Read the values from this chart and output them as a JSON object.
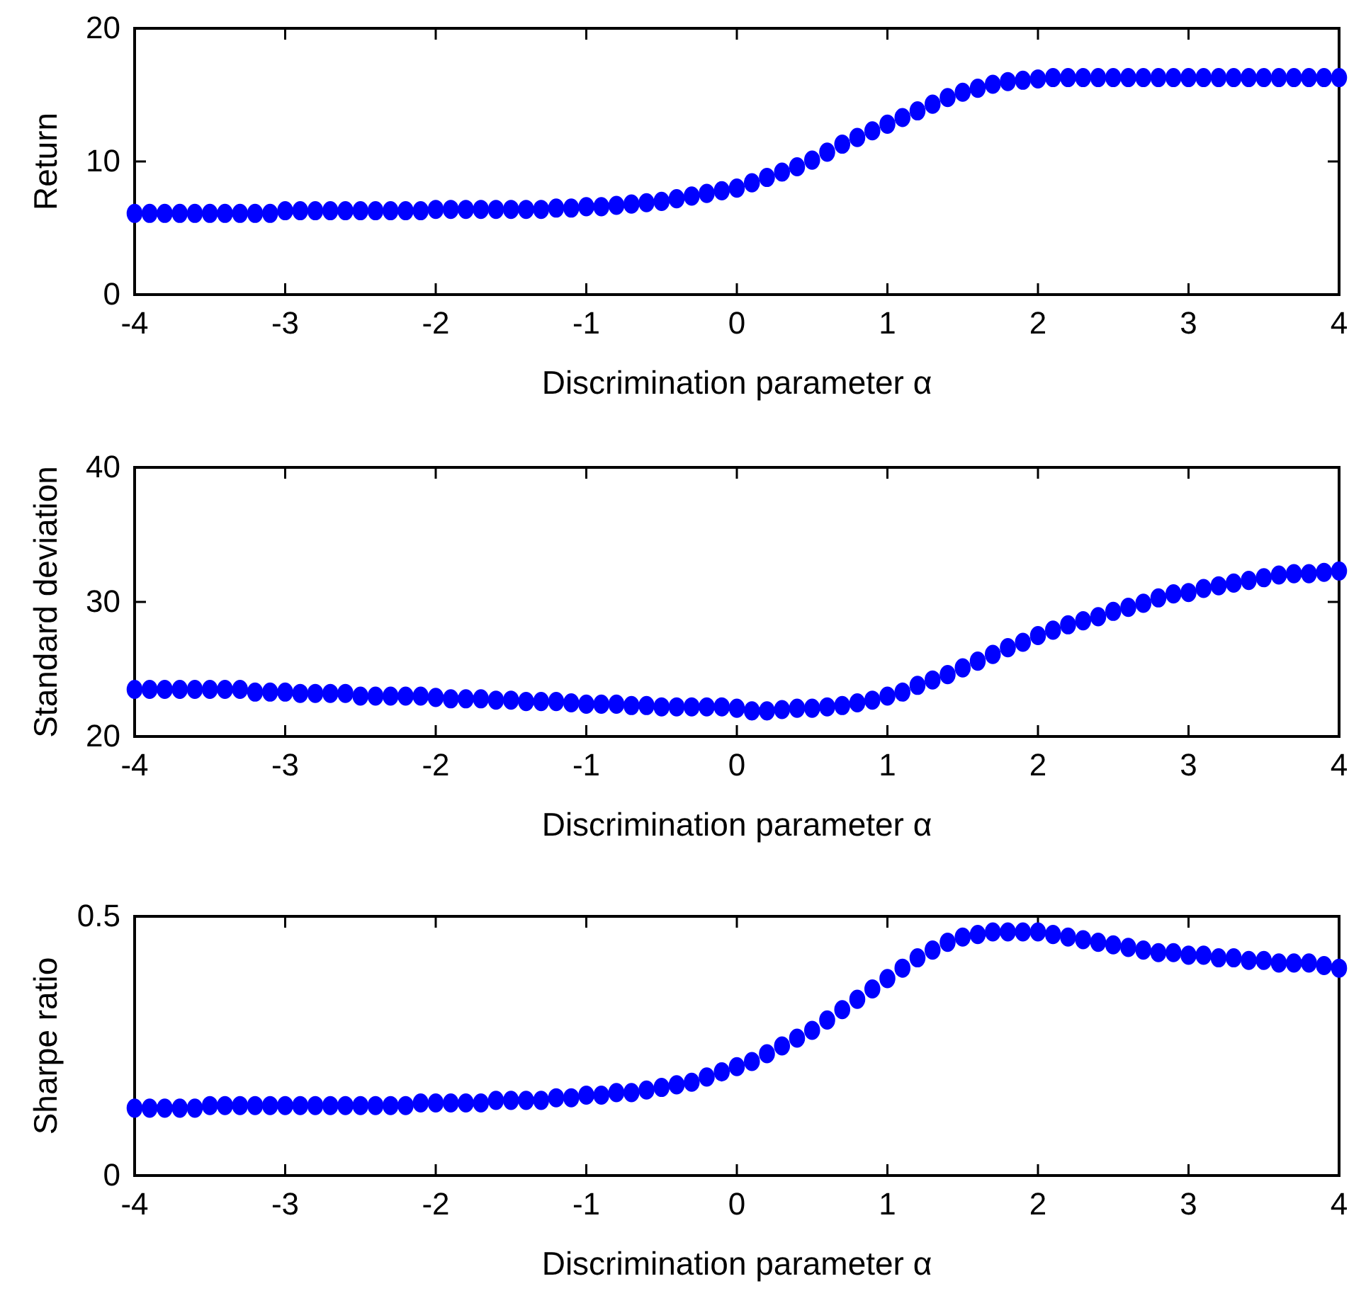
{
  "chart_data": [
    {
      "type": "scatter",
      "xlabel": "Discrimination parameter α",
      "ylabel": "Return",
      "xlim": [
        -4,
        4
      ],
      "xticks": [
        -4,
        -3,
        -2,
        -1,
        0,
        1,
        2,
        3,
        4
      ],
      "ylim": [
        0,
        20
      ],
      "yticks": [
        0,
        10,
        20
      ],
      "marker": "circle",
      "x": [
        -4,
        -3.9,
        -3.8,
        -3.7,
        -3.6,
        -3.5,
        -3.4,
        -3.3,
        -3.2,
        -3.1,
        -3,
        -2.9,
        -2.8,
        -2.7,
        -2.6,
        -2.5,
        -2.4,
        -2.3,
        -2.2,
        -2.1,
        -2,
        -1.9,
        -1.8,
        -1.7,
        -1.6,
        -1.5,
        -1.4,
        -1.3,
        -1.2,
        -1.1,
        -1,
        -0.9,
        -0.8,
        -0.7,
        -0.6,
        -0.5,
        -0.4,
        -0.3,
        -0.2,
        -0.1,
        0,
        0.1,
        0.2,
        0.3,
        0.4,
        0.5,
        0.6,
        0.7,
        0.8,
        0.9,
        1,
        1.1,
        1.2,
        1.3,
        1.4,
        1.5,
        1.6,
        1.7,
        1.8,
        1.9,
        2,
        2.1,
        2.2,
        2.3,
        2.4,
        2.5,
        2.6,
        2.7,
        2.8,
        2.9,
        3,
        3.1,
        3.2,
        3.3,
        3.4,
        3.5,
        3.6,
        3.7,
        3.8,
        3.9,
        4
      ],
      "series": [
        {
          "color": "#0000ff",
          "values": [
            6.1,
            6.1,
            6.1,
            6.1,
            6.1,
            6.1,
            6.1,
            6.1,
            6.1,
            6.1,
            6.3,
            6.3,
            6.3,
            6.3,
            6.3,
            6.3,
            6.3,
            6.3,
            6.3,
            6.3,
            6.4,
            6.4,
            6.4,
            6.4,
            6.4,
            6.4,
            6.4,
            6.4,
            6.5,
            6.5,
            6.6,
            6.6,
            6.7,
            6.8,
            6.9,
            7.0,
            7.2,
            7.4,
            7.6,
            7.8,
            8.0,
            8.4,
            8.8,
            9.2,
            9.6,
            10.1,
            10.7,
            11.3,
            11.8,
            12.3,
            12.8,
            13.3,
            13.8,
            14.3,
            14.8,
            15.2,
            15.5,
            15.8,
            16.0,
            16.1,
            16.2,
            16.3,
            16.3,
            16.3,
            16.3,
            16.3,
            16.3,
            16.3,
            16.3,
            16.3,
            16.3,
            16.3,
            16.3,
            16.3,
            16.3,
            16.3,
            16.3,
            16.3,
            16.3,
            16.3,
            16.3
          ]
        }
      ]
    },
    {
      "type": "scatter",
      "xlabel": "Discrimination parameter α",
      "ylabel": "Standard deviation",
      "xlim": [
        -4,
        4
      ],
      "xticks": [
        -4,
        -3,
        -2,
        -1,
        0,
        1,
        2,
        3,
        4
      ],
      "ylim": [
        20,
        40
      ],
      "yticks": [
        20,
        30,
        40
      ],
      "marker": "circle",
      "x": [
        -4,
        -3.9,
        -3.8,
        -3.7,
        -3.6,
        -3.5,
        -3.4,
        -3.3,
        -3.2,
        -3.1,
        -3,
        -2.9,
        -2.8,
        -2.7,
        -2.6,
        -2.5,
        -2.4,
        -2.3,
        -2.2,
        -2.1,
        -2,
        -1.9,
        -1.8,
        -1.7,
        -1.6,
        -1.5,
        -1.4,
        -1.3,
        -1.2,
        -1.1,
        -1,
        -0.9,
        -0.8,
        -0.7,
        -0.6,
        -0.5,
        -0.4,
        -0.3,
        -0.2,
        -0.1,
        0,
        0.1,
        0.2,
        0.3,
        0.4,
        0.5,
        0.6,
        0.7,
        0.8,
        0.9,
        1,
        1.1,
        1.2,
        1.3,
        1.4,
        1.5,
        1.6,
        1.7,
        1.8,
        1.9,
        2,
        2.1,
        2.2,
        2.3,
        2.4,
        2.5,
        2.6,
        2.7,
        2.8,
        2.9,
        3,
        3.1,
        3.2,
        3.3,
        3.4,
        3.5,
        3.6,
        3.7,
        3.8,
        3.9,
        4
      ],
      "series": [
        {
          "color": "#0000ff",
          "values": [
            23.5,
            23.5,
            23.5,
            23.5,
            23.5,
            23.5,
            23.5,
            23.5,
            23.3,
            23.3,
            23.3,
            23.2,
            23.2,
            23.2,
            23.2,
            23.0,
            23.0,
            23.0,
            23.0,
            23.0,
            22.9,
            22.8,
            22.8,
            22.8,
            22.7,
            22.7,
            22.6,
            22.6,
            22.6,
            22.5,
            22.4,
            22.4,
            22.4,
            22.3,
            22.3,
            22.2,
            22.2,
            22.2,
            22.2,
            22.2,
            22.1,
            21.9,
            21.9,
            22.0,
            22.1,
            22.1,
            22.2,
            22.3,
            22.5,
            22.7,
            23.0,
            23.3,
            23.8,
            24.2,
            24.6,
            25.1,
            25.6,
            26.1,
            26.6,
            27.0,
            27.5,
            27.9,
            28.3,
            28.6,
            28.9,
            29.3,
            29.6,
            29.9,
            30.3,
            30.6,
            30.7,
            31.0,
            31.2,
            31.4,
            31.6,
            31.8,
            32.0,
            32.1,
            32.1,
            32.2,
            32.3
          ]
        }
      ]
    },
    {
      "type": "scatter",
      "xlabel": "Discrimination parameter α",
      "ylabel": "Sharpe ratio",
      "xlim": [
        -4,
        4
      ],
      "xticks": [
        -4,
        -3,
        -2,
        -1,
        0,
        1,
        2,
        3,
        4
      ],
      "ylim": [
        0,
        0.5
      ],
      "yticks": [
        0,
        0.5
      ],
      "marker": "circle",
      "x": [
        -4,
        -3.9,
        -3.8,
        -3.7,
        -3.6,
        -3.5,
        -3.4,
        -3.3,
        -3.2,
        -3.1,
        -3,
        -2.9,
        -2.8,
        -2.7,
        -2.6,
        -2.5,
        -2.4,
        -2.3,
        -2.2,
        -2.1,
        -2,
        -1.9,
        -1.8,
        -1.7,
        -1.6,
        -1.5,
        -1.4,
        -1.3,
        -1.2,
        -1.1,
        -1,
        -0.9,
        -0.8,
        -0.7,
        -0.6,
        -0.5,
        -0.4,
        -0.3,
        -0.2,
        -0.1,
        0,
        0.1,
        0.2,
        0.3,
        0.4,
        0.5,
        0.6,
        0.7,
        0.8,
        0.9,
        1,
        1.1,
        1.2,
        1.3,
        1.4,
        1.5,
        1.6,
        1.7,
        1.8,
        1.9,
        2,
        2.1,
        2.2,
        2.3,
        2.4,
        2.5,
        2.6,
        2.7,
        2.8,
        2.9,
        3,
        3.1,
        3.2,
        3.3,
        3.4,
        3.5,
        3.6,
        3.7,
        3.8,
        3.9,
        4
      ],
      "series": [
        {
          "color": "#0000ff",
          "values": [
            0.13,
            0.13,
            0.13,
            0.13,
            0.13,
            0.135,
            0.135,
            0.135,
            0.135,
            0.135,
            0.135,
            0.135,
            0.135,
            0.135,
            0.135,
            0.135,
            0.135,
            0.135,
            0.135,
            0.14,
            0.14,
            0.14,
            0.14,
            0.14,
            0.145,
            0.145,
            0.145,
            0.145,
            0.15,
            0.15,
            0.155,
            0.155,
            0.16,
            0.16,
            0.165,
            0.17,
            0.175,
            0.18,
            0.19,
            0.2,
            0.21,
            0.22,
            0.235,
            0.25,
            0.265,
            0.28,
            0.3,
            0.32,
            0.34,
            0.36,
            0.38,
            0.4,
            0.42,
            0.435,
            0.45,
            0.46,
            0.465,
            0.47,
            0.47,
            0.47,
            0.47,
            0.465,
            0.46,
            0.455,
            0.45,
            0.445,
            0.44,
            0.435,
            0.43,
            0.43,
            0.425,
            0.425,
            0.42,
            0.42,
            0.415,
            0.415,
            0.41,
            0.41,
            0.41,
            0.405,
            0.4
          ]
        }
      ]
    }
  ]
}
